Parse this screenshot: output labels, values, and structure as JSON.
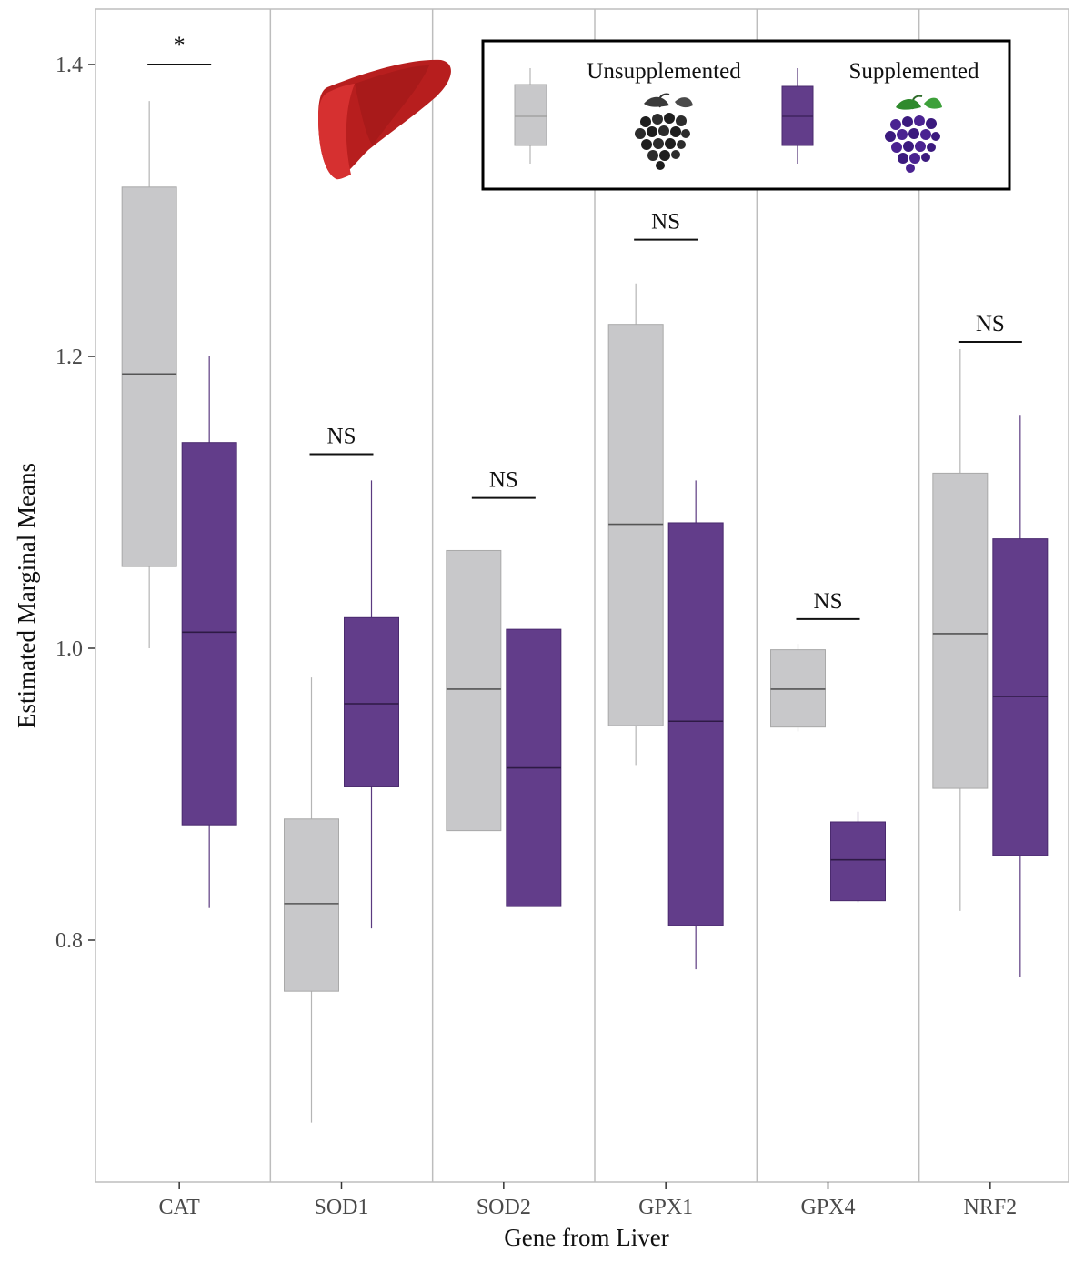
{
  "chart_data": {
    "type": "boxplot",
    "xlabel": "Gene from Liver",
    "ylabel": "Estimated Marginal Means",
    "ylim": [
      0.66,
      1.43
    ],
    "yticks": [
      0.8,
      1.0,
      1.2,
      1.4
    ],
    "ytick_labels": [
      "0.8",
      "1.0",
      "1.2",
      "1.4"
    ],
    "categories": [
      "CAT",
      "SOD1",
      "SOD2",
      "GPX1",
      "GPX4",
      "NRF2"
    ],
    "grid": "vertical separators between genes",
    "legend_position": "top-right",
    "series": [
      {
        "name": "Unsupplemented",
        "color": "#c8c8ca",
        "boxes": [
          {
            "whisker_low": 1.0,
            "q1": 1.056,
            "median": 1.188,
            "q3": 1.316,
            "whisker_high": 1.375
          },
          {
            "whisker_low": 0.675,
            "q1": 0.765,
            "median": 0.825,
            "q3": 0.883,
            "whisker_high": 0.98
          },
          {
            "whisker_low": 0.875,
            "q1": 0.875,
            "median": 0.972,
            "q3": 1.067,
            "whisker_high": 1.067
          },
          {
            "whisker_low": 0.92,
            "q1": 0.947,
            "median": 1.085,
            "q3": 1.222,
            "whisker_high": 1.25
          },
          {
            "whisker_low": 0.943,
            "q1": 0.946,
            "median": 0.972,
            "q3": 0.999,
            "whisker_high": 1.003
          },
          {
            "whisker_low": 0.82,
            "q1": 0.904,
            "median": 1.01,
            "q3": 1.12,
            "whisker_high": 1.205
          }
        ]
      },
      {
        "name": "Supplemented",
        "color": "#623d8a",
        "boxes": [
          {
            "whisker_low": 0.822,
            "q1": 0.879,
            "median": 1.011,
            "q3": 1.141,
            "whisker_high": 1.2
          },
          {
            "whisker_low": 0.808,
            "q1": 0.905,
            "median": 0.962,
            "q3": 1.021,
            "whisker_high": 1.115
          },
          {
            "whisker_low": 0.823,
            "q1": 0.823,
            "median": 0.918,
            "q3": 1.013,
            "whisker_high": 1.013
          },
          {
            "whisker_low": 0.78,
            "q1": 0.81,
            "median": 0.95,
            "q3": 1.086,
            "whisker_high": 1.115
          },
          {
            "whisker_low": 0.826,
            "q1": 0.827,
            "median": 0.855,
            "q3": 0.881,
            "whisker_high": 0.888
          },
          {
            "whisker_low": 0.775,
            "q1": 0.858,
            "median": 0.967,
            "q3": 1.075,
            "whisker_high": 1.16
          }
        ]
      }
    ],
    "annotations": [
      {
        "category": "CAT",
        "label": "*",
        "y": 1.4
      },
      {
        "category": "SOD1",
        "label": "NS",
        "y": 1.133
      },
      {
        "category": "SOD2",
        "label": "NS",
        "y": 1.103
      },
      {
        "category": "GPX1",
        "label": "NS",
        "y": 1.28
      },
      {
        "category": "GPX4",
        "label": "NS",
        "y": 1.02
      },
      {
        "category": "NRF2",
        "label": "NS",
        "y": 1.21
      }
    ]
  },
  "icons": {
    "liver": "liver-icon",
    "grapes_unsupplemented": "grapes-gray-icon",
    "grapes_supplemented": "grapes-purple-icon"
  }
}
